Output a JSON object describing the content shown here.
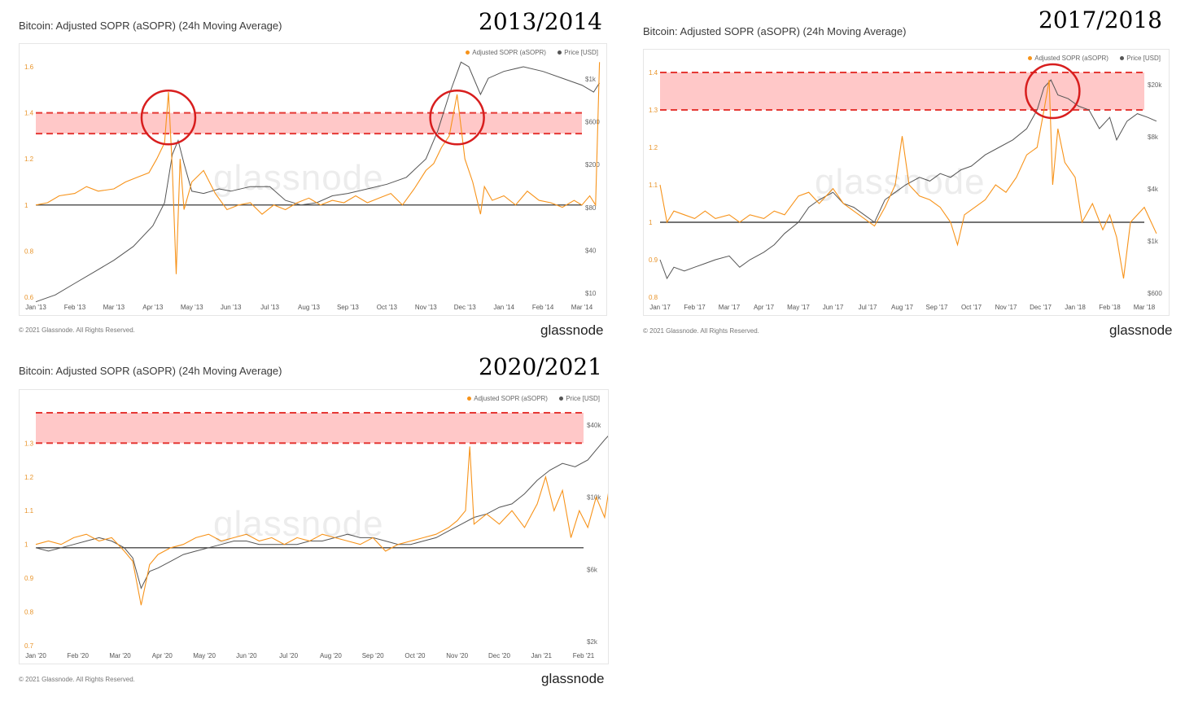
{
  "colors": {
    "sopr": "#f7931a",
    "price": "#555555",
    "band_fill": "#ff9a9a",
    "band_line": "#e53935",
    "circle": "#d81e1e",
    "baseline": "#222222"
  },
  "legend": {
    "sopr": "Adjusted SOPR (aSOPR)",
    "price": "Price [USD]"
  },
  "watermark": "glassnode",
  "copyright": "© 2021 Glassnode. All Rights Reserved.",
  "logo": "glassnode",
  "chart_data": [
    {
      "type": "line",
      "title": "Bitcoin: Adjusted SOPR (aSOPR) (24h Moving Average)",
      "period_label": "2013/2014",
      "x_ticks": [
        "Jan '13",
        "Feb '13",
        "Mar '13",
        "Apr '13",
        "May '13",
        "Jun '13",
        "Jul '13",
        "Aug '13",
        "Sep '13",
        "Oct '13",
        "Nov '13",
        "Dec '13",
        "Jan '14",
        "Feb '14",
        "Mar '14"
      ],
      "y_left_ticks": [
        "0.6",
        "0.8",
        "1",
        "1.2",
        "1.4",
        "1.6"
      ],
      "y_left_range": [
        0.6,
        1.6
      ],
      "y_right_ticks": [
        "$10",
        "$40",
        "$80",
        "$200",
        "$600",
        "$1k"
      ],
      "baseline": 1,
      "band": [
        1.31,
        1.4
      ],
      "circles": [
        {
          "x": 3.4,
          "y": 1.38
        },
        {
          "x": 10.8,
          "y": 1.38
        }
      ],
      "sopr": [
        [
          0,
          1.0
        ],
        [
          0.3,
          1.01
        ],
        [
          0.6,
          1.04
        ],
        [
          1,
          1.05
        ],
        [
          1.3,
          1.08
        ],
        [
          1.6,
          1.06
        ],
        [
          2,
          1.07
        ],
        [
          2.3,
          1.1
        ],
        [
          2.6,
          1.12
        ],
        [
          2.9,
          1.14
        ],
        [
          3.1,
          1.2
        ],
        [
          3.3,
          1.27
        ],
        [
          3.4,
          1.49
        ],
        [
          3.5,
          1.15
        ],
        [
          3.6,
          0.7
        ],
        [
          3.7,
          1.2
        ],
        [
          3.8,
          0.98
        ],
        [
          4,
          1.1
        ],
        [
          4.3,
          1.15
        ],
        [
          4.6,
          1.05
        ],
        [
          4.9,
          0.98
        ],
        [
          5.2,
          1.0
        ],
        [
          5.5,
          1.01
        ],
        [
          5.8,
          0.96
        ],
        [
          6.1,
          1.0
        ],
        [
          6.4,
          0.98
        ],
        [
          6.7,
          1.01
        ],
        [
          7,
          1.03
        ],
        [
          7.3,
          1.0
        ],
        [
          7.6,
          1.02
        ],
        [
          7.9,
          1.01
        ],
        [
          8.2,
          1.04
        ],
        [
          8.5,
          1.01
        ],
        [
          8.8,
          1.03
        ],
        [
          9.1,
          1.05
        ],
        [
          9.4,
          1.0
        ],
        [
          9.7,
          1.07
        ],
        [
          10,
          1.15
        ],
        [
          10.2,
          1.18
        ],
        [
          10.4,
          1.25
        ],
        [
          10.6,
          1.3
        ],
        [
          10.8,
          1.48
        ],
        [
          11,
          1.2
        ],
        [
          11.2,
          1.1
        ],
        [
          11.4,
          0.96
        ],
        [
          11.5,
          1.08
        ],
        [
          11.7,
          1.02
        ],
        [
          12,
          1.04
        ],
        [
          12.3,
          1.0
        ],
        [
          12.6,
          1.06
        ],
        [
          12.9,
          1.02
        ],
        [
          13.2,
          1.01
        ],
        [
          13.5,
          0.99
        ],
        [
          13.8,
          1.02
        ],
        [
          14,
          1.0
        ],
        [
          14.2,
          1.04
        ],
        [
          14.35,
          1.0
        ],
        [
          14.45,
          1.62
        ]
      ],
      "price": [
        [
          0,
          0.58
        ],
        [
          0.5,
          0.61
        ],
        [
          1,
          0.66
        ],
        [
          1.5,
          0.71
        ],
        [
          2,
          0.76
        ],
        [
          2.5,
          0.82
        ],
        [
          3,
          0.91
        ],
        [
          3.3,
          1.01
        ],
        [
          3.5,
          1.22
        ],
        [
          3.65,
          1.28
        ],
        [
          3.8,
          1.18
        ],
        [
          4,
          1.06
        ],
        [
          4.3,
          1.05
        ],
        [
          4.7,
          1.07
        ],
        [
          5,
          1.06
        ],
        [
          5.5,
          1.08
        ],
        [
          6,
          1.08
        ],
        [
          6.4,
          1.02
        ],
        [
          6.8,
          1.0
        ],
        [
          7.2,
          1.01
        ],
        [
          7.6,
          1.04
        ],
        [
          8,
          1.05
        ],
        [
          8.5,
          1.07
        ],
        [
          9,
          1.09
        ],
        [
          9.5,
          1.12
        ],
        [
          10,
          1.2
        ],
        [
          10.3,
          1.32
        ],
        [
          10.6,
          1.48
        ],
        [
          10.9,
          1.62
        ],
        [
          11.1,
          1.6
        ],
        [
          11.4,
          1.48
        ],
        [
          11.6,
          1.55
        ],
        [
          12,
          1.58
        ],
        [
          12.5,
          1.6
        ],
        [
          13,
          1.58
        ],
        [
          13.5,
          1.55
        ],
        [
          14,
          1.52
        ],
        [
          14.3,
          1.49
        ],
        [
          14.45,
          1.53
        ]
      ]
    },
    {
      "type": "line",
      "title": "Bitcoin: Adjusted SOPR (aSOPR) (24h Moving Average)",
      "period_label": "2017/2018",
      "x_ticks": [
        "Jan '17",
        "Feb '17",
        "Mar '17",
        "Apr '17",
        "May '17",
        "Jun '17",
        "Jul '17",
        "Aug '17",
        "Sep '17",
        "Oct '17",
        "Nov '17",
        "Dec '17",
        "Jan '18",
        "Feb '18",
        "Mar '18"
      ],
      "y_left_ticks": [
        "0.8",
        "0.9",
        "1",
        "1.1",
        "1.2",
        "1.3",
        "1.4"
      ],
      "y_left_range": [
        0.8,
        1.4
      ],
      "y_right_ticks": [
        "$600",
        "$1k",
        "$4k",
        "$8k",
        "$20k"
      ],
      "baseline": 1,
      "band": [
        1.3,
        1.4
      ],
      "circles": [
        {
          "x": 11.35,
          "y": 1.35
        }
      ],
      "sopr": [
        [
          0,
          1.1
        ],
        [
          0.2,
          1.0
        ],
        [
          0.4,
          1.03
        ],
        [
          0.7,
          1.02
        ],
        [
          1,
          1.01
        ],
        [
          1.3,
          1.03
        ],
        [
          1.6,
          1.01
        ],
        [
          2,
          1.02
        ],
        [
          2.3,
          1.0
        ],
        [
          2.6,
          1.02
        ],
        [
          3,
          1.01
        ],
        [
          3.3,
          1.03
        ],
        [
          3.6,
          1.02
        ],
        [
          4,
          1.07
        ],
        [
          4.3,
          1.08
        ],
        [
          4.6,
          1.05
        ],
        [
          5,
          1.09
        ],
        [
          5.3,
          1.05
        ],
        [
          5.6,
          1.03
        ],
        [
          5.9,
          1.01
        ],
        [
          6.2,
          0.99
        ],
        [
          6.5,
          1.04
        ],
        [
          6.8,
          1.1
        ],
        [
          7,
          1.23
        ],
        [
          7.2,
          1.1
        ],
        [
          7.5,
          1.07
        ],
        [
          7.8,
          1.06
        ],
        [
          8.1,
          1.04
        ],
        [
          8.4,
          1.0
        ],
        [
          8.6,
          0.94
        ],
        [
          8.8,
          1.02
        ],
        [
          9.1,
          1.04
        ],
        [
          9.4,
          1.06
        ],
        [
          9.7,
          1.1
        ],
        [
          10,
          1.08
        ],
        [
          10.3,
          1.12
        ],
        [
          10.6,
          1.18
        ],
        [
          10.9,
          1.2
        ],
        [
          11.1,
          1.3
        ],
        [
          11.25,
          1.38
        ],
        [
          11.35,
          1.1
        ],
        [
          11.5,
          1.25
        ],
        [
          11.7,
          1.16
        ],
        [
          12,
          1.12
        ],
        [
          12.2,
          1.0
        ],
        [
          12.5,
          1.05
        ],
        [
          12.8,
          0.98
        ],
        [
          13,
          1.02
        ],
        [
          13.2,
          0.96
        ],
        [
          13.4,
          0.85
        ],
        [
          13.6,
          1.0
        ],
        [
          13.8,
          1.02
        ],
        [
          14,
          1.04
        ],
        [
          14.2,
          1.0
        ],
        [
          14.35,
          0.97
        ]
      ],
      "price": [
        [
          0,
          0.9
        ],
        [
          0.2,
          0.85
        ],
        [
          0.4,
          0.88
        ],
        [
          0.7,
          0.87
        ],
        [
          1,
          0.88
        ],
        [
          1.3,
          0.89
        ],
        [
          1.6,
          0.9
        ],
        [
          2,
          0.91
        ],
        [
          2.3,
          0.88
        ],
        [
          2.6,
          0.9
        ],
        [
          3,
          0.92
        ],
        [
          3.3,
          0.94
        ],
        [
          3.6,
          0.97
        ],
        [
          4,
          1.0
        ],
        [
          4.3,
          1.04
        ],
        [
          4.6,
          1.06
        ],
        [
          5,
          1.08
        ],
        [
          5.3,
          1.05
        ],
        [
          5.6,
          1.04
        ],
        [
          5.9,
          1.02
        ],
        [
          6.2,
          1.0
        ],
        [
          6.5,
          1.06
        ],
        [
          6.8,
          1.08
        ],
        [
          7.1,
          1.1
        ],
        [
          7.5,
          1.12
        ],
        [
          7.8,
          1.11
        ],
        [
          8.1,
          1.13
        ],
        [
          8.4,
          1.12
        ],
        [
          8.7,
          1.14
        ],
        [
          9,
          1.15
        ],
        [
          9.4,
          1.18
        ],
        [
          9.8,
          1.2
        ],
        [
          10.2,
          1.22
        ],
        [
          10.6,
          1.25
        ],
        [
          10.9,
          1.3
        ],
        [
          11.1,
          1.36
        ],
        [
          11.3,
          1.38
        ],
        [
          11.5,
          1.34
        ],
        [
          11.8,
          1.33
        ],
        [
          12.1,
          1.31
        ],
        [
          12.4,
          1.3
        ],
        [
          12.7,
          1.25
        ],
        [
          13,
          1.28
        ],
        [
          13.2,
          1.22
        ],
        [
          13.5,
          1.27
        ],
        [
          13.8,
          1.29
        ],
        [
          14.1,
          1.28
        ],
        [
          14.35,
          1.27
        ]
      ]
    },
    {
      "type": "line",
      "title": "Bitcoin: Adjusted SOPR (aSOPR) (24h Moving Average)",
      "period_label": "2020/2021",
      "x_ticks": [
        "Jan '20",
        "Feb '20",
        "Mar '20",
        "Apr '20",
        "May '20",
        "Jun '20",
        "Jul '20",
        "Aug '20",
        "Sep '20",
        "Oct '20",
        "Nov '20",
        "Dec '20",
        "Jan '21",
        "Feb '21"
      ],
      "y_left_ticks": [
        "0.7",
        "0.8",
        "0.9",
        "1",
        "1.1",
        "1.2",
        "1.3"
      ],
      "y_left_range": [
        0.7,
        1.39
      ],
      "y_right_ticks": [
        "$2k",
        "$6k",
        "$10k",
        "$40k"
      ],
      "baseline": 0.99,
      "band": [
        1.3,
        1.39
      ],
      "circles": [],
      "sopr": [
        [
          0,
          1.0
        ],
        [
          0.3,
          1.01
        ],
        [
          0.6,
          1.0
        ],
        [
          0.9,
          1.02
        ],
        [
          1.2,
          1.03
        ],
        [
          1.5,
          1.01
        ],
        [
          1.8,
          1.02
        ],
        [
          2.1,
          0.98
        ],
        [
          2.3,
          0.95
        ],
        [
          2.5,
          0.82
        ],
        [
          2.7,
          0.94
        ],
        [
          2.9,
          0.97
        ],
        [
          3.2,
          0.99
        ],
        [
          3.5,
          1.0
        ],
        [
          3.8,
          1.02
        ],
        [
          4.1,
          1.03
        ],
        [
          4.4,
          1.01
        ],
        [
          4.7,
          1.02
        ],
        [
          5,
          1.03
        ],
        [
          5.3,
          1.01
        ],
        [
          5.6,
          1.02
        ],
        [
          5.9,
          1.0
        ],
        [
          6.2,
          1.02
        ],
        [
          6.5,
          1.01
        ],
        [
          6.8,
          1.03
        ],
        [
          7.1,
          1.02
        ],
        [
          7.4,
          1.01
        ],
        [
          7.7,
          1.0
        ],
        [
          8,
          1.02
        ],
        [
          8.3,
          0.98
        ],
        [
          8.6,
          1.0
        ],
        [
          8.9,
          1.01
        ],
        [
          9.2,
          1.02
        ],
        [
          9.5,
          1.03
        ],
        [
          9.8,
          1.05
        ],
        [
          10,
          1.07
        ],
        [
          10.2,
          1.1
        ],
        [
          10.3,
          1.29
        ],
        [
          10.4,
          1.06
        ],
        [
          10.7,
          1.09
        ],
        [
          11,
          1.06
        ],
        [
          11.3,
          1.1
        ],
        [
          11.6,
          1.05
        ],
        [
          11.9,
          1.12
        ],
        [
          12.1,
          1.2
        ],
        [
          12.3,
          1.1
        ],
        [
          12.5,
          1.16
        ],
        [
          12.7,
          1.02
        ],
        [
          12.9,
          1.1
        ],
        [
          13.1,
          1.05
        ],
        [
          13.3,
          1.14
        ],
        [
          13.5,
          1.08
        ],
        [
          13.65,
          1.2
        ],
        [
          13.8,
          1.06
        ]
      ],
      "price": [
        [
          0,
          0.99
        ],
        [
          0.3,
          0.98
        ],
        [
          0.6,
          0.99
        ],
        [
          0.9,
          1.0
        ],
        [
          1.2,
          1.01
        ],
        [
          1.5,
          1.02
        ],
        [
          1.8,
          1.01
        ],
        [
          2.1,
          0.99
        ],
        [
          2.3,
          0.96
        ],
        [
          2.5,
          0.87
        ],
        [
          2.7,
          0.92
        ],
        [
          2.9,
          0.93
        ],
        [
          3.2,
          0.95
        ],
        [
          3.5,
          0.97
        ],
        [
          3.8,
          0.98
        ],
        [
          4.1,
          0.99
        ],
        [
          4.4,
          1.0
        ],
        [
          4.7,
          1.01
        ],
        [
          5,
          1.01
        ],
        [
          5.3,
          1.0
        ],
        [
          5.6,
          1.0
        ],
        [
          5.9,
          1.0
        ],
        [
          6.2,
          1.0
        ],
        [
          6.5,
          1.01
        ],
        [
          6.8,
          1.01
        ],
        [
          7.1,
          1.02
        ],
        [
          7.4,
          1.03
        ],
        [
          7.7,
          1.02
        ],
        [
          8,
          1.02
        ],
        [
          8.3,
          1.01
        ],
        [
          8.6,
          1.0
        ],
        [
          8.9,
          1.0
        ],
        [
          9.2,
          1.01
        ],
        [
          9.5,
          1.02
        ],
        [
          9.8,
          1.04
        ],
        [
          10.1,
          1.06
        ],
        [
          10.4,
          1.08
        ],
        [
          10.7,
          1.09
        ],
        [
          11,
          1.11
        ],
        [
          11.3,
          1.12
        ],
        [
          11.6,
          1.15
        ],
        [
          11.9,
          1.19
        ],
        [
          12.2,
          1.22
        ],
        [
          12.5,
          1.24
        ],
        [
          12.8,
          1.23
        ],
        [
          13.1,
          1.25
        ],
        [
          13.3,
          1.28
        ],
        [
          13.5,
          1.31
        ],
        [
          13.65,
          1.33
        ],
        [
          13.8,
          1.3
        ]
      ]
    }
  ]
}
